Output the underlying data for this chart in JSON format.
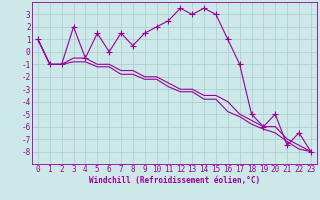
{
  "xlabel": "Windchill (Refroidissement éolien,°C)",
  "hours": [
    0,
    1,
    2,
    3,
    4,
    5,
    6,
    7,
    8,
    9,
    10,
    11,
    12,
    13,
    14,
    15,
    16,
    17,
    18,
    19,
    20,
    21,
    22,
    23
  ],
  "line1": [
    1,
    -1,
    -1,
    2,
    -0.5,
    1.5,
    0,
    1.5,
    0.5,
    1.5,
    2,
    2.5,
    3.5,
    3,
    3.5,
    3,
    1,
    -1,
    -5,
    -6,
    -5,
    -7.5,
    -6.5,
    -8
  ],
  "line2": [
    1,
    -1,
    -1,
    -0.5,
    -0.5,
    -1,
    -1,
    -1.5,
    -1.5,
    -2,
    -2,
    -2.5,
    -3,
    -3,
    -3.5,
    -3.5,
    -4,
    -5,
    -5.5,
    -6,
    -6,
    -7,
    -7.5,
    -8
  ],
  "line3": [
    1,
    -1,
    -1,
    -0.8,
    -0.8,
    -1.2,
    -1.2,
    -1.8,
    -1.8,
    -2.2,
    -2.2,
    -2.8,
    -3.2,
    -3.2,
    -3.8,
    -3.8,
    -4.8,
    -5.2,
    -5.8,
    -6.2,
    -6.5,
    -7.2,
    -7.8,
    -8
  ],
  "line_color": "#990099",
  "bg_color": "#cce8e8",
  "grid_color": "#aacccc",
  "ylim": [
    -9,
    4
  ],
  "yticks": [
    3,
    2,
    1,
    0,
    -1,
    -2,
    -3,
    -4,
    -5,
    -6,
    -7,
    -8
  ],
  "xlim": [
    -0.5,
    23.5
  ],
  "marker": "+",
  "markersize": 4,
  "linewidth": 0.8,
  "tick_fontsize": 5.5,
  "xlabel_fontsize": 5.5
}
